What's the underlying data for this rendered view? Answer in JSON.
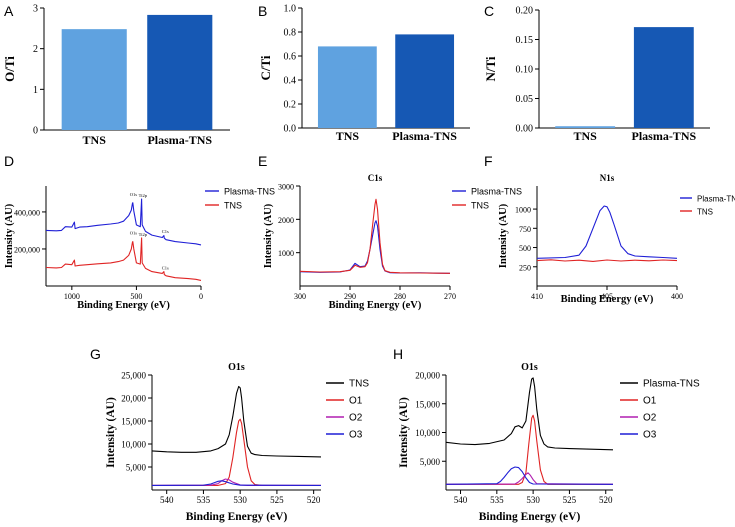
{
  "chart_data": [
    {
      "panel": "A",
      "type": "bar",
      "categories": [
        "TNS",
        "Plasma-TNS"
      ],
      "values": [
        2.48,
        2.83
      ],
      "colors": [
        "#5fa2e0",
        "#1658b4"
      ],
      "ylabel": "O/Ti",
      "ylim": [
        0,
        3
      ],
      "yticks": [
        0,
        1,
        2,
        3
      ],
      "ytick_labels": [
        "0",
        "1",
        "2",
        "3"
      ]
    },
    {
      "panel": "B",
      "type": "bar",
      "categories": [
        "TNS",
        "Plasma-TNS"
      ],
      "values": [
        0.68,
        0.78
      ],
      "colors": [
        "#5fa2e0",
        "#1658b4"
      ],
      "ylabel": "C/Ti",
      "ylim": [
        0,
        1.0
      ],
      "yticks": [
        0,
        0.2,
        0.4,
        0.6,
        0.8,
        1.0
      ],
      "ytick_labels": [
        "0.0",
        "0.2",
        "0.4",
        "0.6",
        "0.8",
        "1.0"
      ]
    },
    {
      "panel": "C",
      "type": "bar",
      "categories": [
        "TNS",
        "Plasma-TNS"
      ],
      "values": [
        0.003,
        0.171
      ],
      "colors": [
        "#5fa2e0",
        "#1658b4"
      ],
      "ylabel": "N/Ti",
      "ylim": [
        0,
        0.2
      ],
      "yticks": [
        0,
        0.05,
        0.1,
        0.15,
        0.2
      ],
      "ytick_labels": [
        "0.00",
        "0.05",
        "0.10",
        "0.15",
        "0.20"
      ]
    },
    {
      "panel": "D",
      "type": "line",
      "title": "",
      "xlabel": "Binding Energy (eV)",
      "ylabel": "Intensity (AU)",
      "xlim": [
        1200,
        0
      ],
      "ylim": [
        0,
        540000
      ],
      "xticks": [
        1000,
        500,
        0
      ],
      "xtick_labels": [
        "1000",
        "500",
        "0"
      ],
      "yticks": [
        200000,
        400000
      ],
      "ytick_labels": [
        "200,000",
        "400,000"
      ],
      "legend": [
        "Plasma-TNS",
        "TNS"
      ],
      "annotations": [
        "O1s",
        "Ti2p",
        "C1s",
        "O1s",
        "Ti2p",
        "C1s"
      ],
      "series": [
        {
          "name": "Plasma-TNS",
          "color": "#1f1fd6",
          "x": [
            1200,
            1120,
            1080,
            1050,
            1000,
            980,
            975,
            940,
            880,
            800,
            700,
            640,
            600,
            560,
            540,
            531,
            528,
            520,
            500,
            470,
            460,
            455,
            430,
            380,
            300,
            287,
            284,
            270,
            200,
            100,
            40,
            0
          ],
          "y": [
            300000,
            298000,
            300000,
            320000,
            318000,
            345000,
            310000,
            318000,
            320000,
            328000,
            335000,
            340000,
            350000,
            380000,
            410000,
            445000,
            450000,
            405000,
            330000,
            320000,
            470000,
            330000,
            295000,
            275000,
            262000,
            272000,
            258000,
            250000,
            240000,
            232000,
            228000,
            222000
          ]
        },
        {
          "name": "TNS",
          "color": "#e02424",
          "x": [
            1200,
            1120,
            1080,
            1050,
            1000,
            980,
            975,
            940,
            880,
            800,
            700,
            640,
            600,
            560,
            540,
            531,
            528,
            520,
            500,
            470,
            460,
            455,
            430,
            380,
            300,
            287,
            284,
            270,
            200,
            100,
            40,
            0
          ],
          "y": [
            100000,
            98000,
            100000,
            118000,
            115000,
            140000,
            108000,
            112000,
            115000,
            120000,
            125000,
            132000,
            140000,
            165000,
            200000,
            235000,
            240000,
            200000,
            125000,
            118000,
            260000,
            125000,
            95000,
            78000,
            68000,
            78000,
            62000,
            55000,
            45000,
            40000,
            36000,
            30000
          ]
        }
      ]
    },
    {
      "panel": "E",
      "type": "line",
      "title": "C1s",
      "xlabel": "Binding Energy (eV)",
      "ylabel": "Intensity (AU)",
      "xlim": [
        300,
        270
      ],
      "ylim": [
        0,
        3000
      ],
      "xticks": [
        300,
        290,
        280,
        270
      ],
      "xtick_labels": [
        "300",
        "290",
        "280",
        "270"
      ],
      "yticks": [
        1000,
        2000,
        3000
      ],
      "ytick_labels": [
        "1000",
        "2000",
        "3000"
      ],
      "legend": [
        "Plasma-TNS",
        "TNS"
      ],
      "series": [
        {
          "name": "Plasma-TNS",
          "color": "#1f1fd6",
          "x": [
            300,
            296,
            292,
            290,
            289,
            288,
            287,
            286.5,
            286,
            285.5,
            285,
            284.8,
            284.5,
            284,
            283.5,
            283,
            282,
            280,
            276,
            272,
            270
          ],
          "y": [
            430,
            410,
            420,
            480,
            680,
            580,
            600,
            750,
            1100,
            1500,
            1900,
            1960,
            1800,
            1100,
            600,
            450,
            400,
            390,
            395,
            385,
            380
          ]
        },
        {
          "name": "TNS",
          "color": "#e02424",
          "x": [
            300,
            296,
            292,
            290,
            289,
            288,
            287,
            286.5,
            286,
            285.5,
            285,
            284.8,
            284.5,
            284,
            283.5,
            283,
            282,
            280,
            276,
            272,
            270
          ],
          "y": [
            440,
            420,
            430,
            470,
            620,
            560,
            580,
            700,
            1100,
            1800,
            2450,
            2600,
            2300,
            1300,
            650,
            460,
            410,
            395,
            390,
            385,
            380
          ]
        }
      ]
    },
    {
      "panel": "F",
      "type": "line",
      "title": "N1s",
      "xlabel": "Binding Energy (eV)",
      "ylabel": "Intensity (AU)",
      "xlim": [
        410,
        400
      ],
      "ylim": [
        0,
        1300
      ],
      "xticks": [
        410,
        405,
        400
      ],
      "xtick_labels": [
        "410",
        "405",
        "400"
      ],
      "yticks": [
        250,
        500,
        750,
        1000
      ],
      "ytick_labels": [
        "250",
        "500",
        "750",
        "1000"
      ],
      "legend": [
        "Plasma-TNS",
        "TNS"
      ],
      "series": [
        {
          "name": "Plasma-TNS",
          "color": "#1f1fd6",
          "x": [
            410,
            408,
            407,
            406.5,
            406,
            405.5,
            405.2,
            405,
            404.8,
            404.5,
            404,
            403.5,
            403,
            402,
            401,
            400
          ],
          "y": [
            360,
            370,
            400,
            520,
            750,
            980,
            1040,
            1030,
            960,
            800,
            520,
            420,
            390,
            380,
            370,
            360
          ]
        },
        {
          "name": "TNS",
          "color": "#e02424",
          "x": [
            410,
            409,
            408,
            407,
            406,
            405,
            404,
            403,
            402,
            401,
            400
          ],
          "y": [
            330,
            340,
            325,
            335,
            320,
            338,
            325,
            335,
            328,
            338,
            330
          ]
        }
      ]
    },
    {
      "panel": "G",
      "type": "line",
      "title": "O1s",
      "xlabel": "Binding Energy (eV)",
      "ylabel": "Intensity (AU)",
      "xlim": [
        542,
        519
      ],
      "ylim": [
        0,
        25000
      ],
      "xticks": [
        540,
        535,
        530,
        525,
        520
      ],
      "xtick_labels": [
        "540",
        "535",
        "530",
        "525",
        "520"
      ],
      "yticks": [
        5000,
        10000,
        15000,
        20000,
        25000
      ],
      "ytick_labels": [
        "5,000",
        "10,000",
        "15,000",
        "20,000",
        "25,000"
      ],
      "legend": [
        "TNS",
        "O1",
        "O2",
        "O3"
      ],
      "series": [
        {
          "name": "TNS",
          "color": "#000000",
          "x": [
            542,
            540,
            538,
            536,
            534,
            533,
            532,
            531.5,
            531,
            530.5,
            530.2,
            530,
            529.8,
            529.5,
            529,
            528.5,
            528,
            527,
            525,
            522,
            519
          ],
          "y": [
            8500,
            8300,
            8200,
            8200,
            8500,
            9000,
            10000,
            12000,
            16000,
            21000,
            22500,
            22200,
            20000,
            15000,
            9500,
            8000,
            7700,
            7500,
            7400,
            7300,
            7200
          ]
        },
        {
          "name": "O1",
          "color": "#e02424",
          "x": [
            542,
            533,
            532,
            531.5,
            531,
            530.5,
            530.2,
            530,
            529.8,
            529.5,
            529,
            528.5,
            528,
            527,
            519
          ],
          "y": [
            1000,
            1000,
            1400,
            2800,
            7000,
            12500,
            15000,
            15400,
            14500,
            11000,
            5000,
            2000,
            1200,
            1000,
            1000
          ]
        },
        {
          "name": "O2",
          "color": "#b01fb0",
          "x": [
            542,
            534,
            533,
            532.5,
            532,
            531.5,
            531,
            530,
            529,
            519
          ],
          "y": [
            1000,
            1050,
            1400,
            2000,
            2400,
            2200,
            1700,
            1100,
            1000,
            1000
          ]
        },
        {
          "name": "O3",
          "color": "#1f1fd6",
          "x": [
            542,
            535,
            534,
            533.5,
            533,
            532.5,
            532,
            531,
            530,
            519
          ],
          "y": [
            1000,
            1050,
            1300,
            1600,
            1900,
            2000,
            1800,
            1300,
            1050,
            1000
          ]
        }
      ]
    },
    {
      "panel": "H",
      "type": "line",
      "title": "O1s",
      "xlabel": "Binding Energy (eV)",
      "ylabel": "Intensity (AU)",
      "xlim": [
        542,
        519
      ],
      "ylim": [
        0,
        20000
      ],
      "xticks": [
        540,
        535,
        530,
        525,
        520
      ],
      "xtick_labels": [
        "540",
        "535",
        "530",
        "525",
        "520"
      ],
      "yticks": [
        5000,
        10000,
        15000,
        20000
      ],
      "ytick_labels": [
        "5,000",
        "10,000",
        "15,000",
        "20,000"
      ],
      "legend": [
        "Plasma-TNS",
        "O1",
        "O2",
        "O3"
      ],
      "series": [
        {
          "name": "Plasma-TNS",
          "color": "#000000",
          "x": [
            542,
            540,
            538,
            536,
            534,
            533,
            532.5,
            532,
            531.5,
            531,
            530.5,
            530.2,
            530,
            529.8,
            529.5,
            529,
            528.5,
            528,
            527,
            525,
            522,
            519
          ],
          "y": [
            8300,
            8000,
            7900,
            8100,
            8700,
            9800,
            11000,
            11200,
            10800,
            12000,
            17000,
            19300,
            19500,
            18000,
            14000,
            9500,
            8000,
            7500,
            7300,
            7200,
            7100,
            7000
          ]
        },
        {
          "name": "O1",
          "color": "#e02424",
          "x": [
            542,
            532,
            531.5,
            531,
            530.6,
            530.2,
            530,
            529.8,
            529.5,
            529,
            528.5,
            528,
            519
          ],
          "y": [
            1000,
            1000,
            1300,
            3000,
            8000,
            12500,
            13000,
            12000,
            8500,
            3500,
            1500,
            1000,
            1000
          ]
        },
        {
          "name": "O2",
          "color": "#b01fb0",
          "x": [
            542,
            532.5,
            532,
            531.5,
            531,
            530.7,
            530.4,
            530,
            529.5,
            519
          ],
          "y": [
            1000,
            1050,
            1400,
            2000,
            2700,
            3000,
            2600,
            1800,
            1100,
            1000
          ]
        },
        {
          "name": "O3",
          "color": "#1f1fd6",
          "x": [
            542,
            535,
            534.5,
            534,
            533.5,
            533,
            532.5,
            532,
            531.5,
            531,
            530.5,
            530,
            519
          ],
          "y": [
            1000,
            1100,
            1500,
            2200,
            3000,
            3700,
            4000,
            3900,
            3200,
            2100,
            1300,
            1050,
            1000
          ]
        }
      ]
    }
  ],
  "panel_labels": [
    "A",
    "B",
    "C",
    "D",
    "E",
    "F",
    "G",
    "H"
  ]
}
